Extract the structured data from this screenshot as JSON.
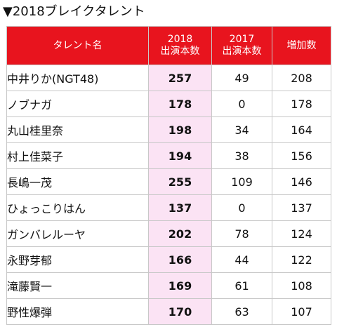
{
  "title": "▼2018ブレイクタレント",
  "header": {
    "name": "タレント名",
    "y2018": [
      "2018",
      "出演本数"
    ],
    "y2017": [
      "2017",
      "出演本数"
    ],
    "increase": "増加数"
  },
  "rows": [
    {
      "name": "中井りか(NGT48)",
      "y2018": "257",
      "y2017": "49",
      "increase": "208"
    },
    {
      "name": "ノブナガ",
      "y2018": "178",
      "y2017": "0",
      "increase": "178"
    },
    {
      "name": "丸山桂里奈",
      "y2018": "198",
      "y2017": "34",
      "increase": "164"
    },
    {
      "name": "村上佳菜子",
      "y2018": "194",
      "y2017": "38",
      "increase": "156"
    },
    {
      "name": "長嶋一茂",
      "y2018": "255",
      "y2017": "109",
      "increase": "146"
    },
    {
      "name": "ひょっこりはん",
      "y2018": "137",
      "y2017": "0",
      "increase": "137"
    },
    {
      "name": "ガンバレルーヤ",
      "y2018": "202",
      "y2017": "78",
      "increase": "124"
    },
    {
      "name": "永野芽郁",
      "y2018": "166",
      "y2017": "44",
      "increase": "122"
    },
    {
      "name": "滝藤賢一",
      "y2018": "169",
      "y2017": "61",
      "increase": "108"
    },
    {
      "name": "野性爆弾",
      "y2018": "170",
      "y2017": "63",
      "increase": "107"
    }
  ],
  "colors": {
    "header_bg": "#e8141e",
    "header_text": "#ffffff",
    "highlight_col": "#fbe3f4",
    "border": "#c8c8c8"
  }
}
